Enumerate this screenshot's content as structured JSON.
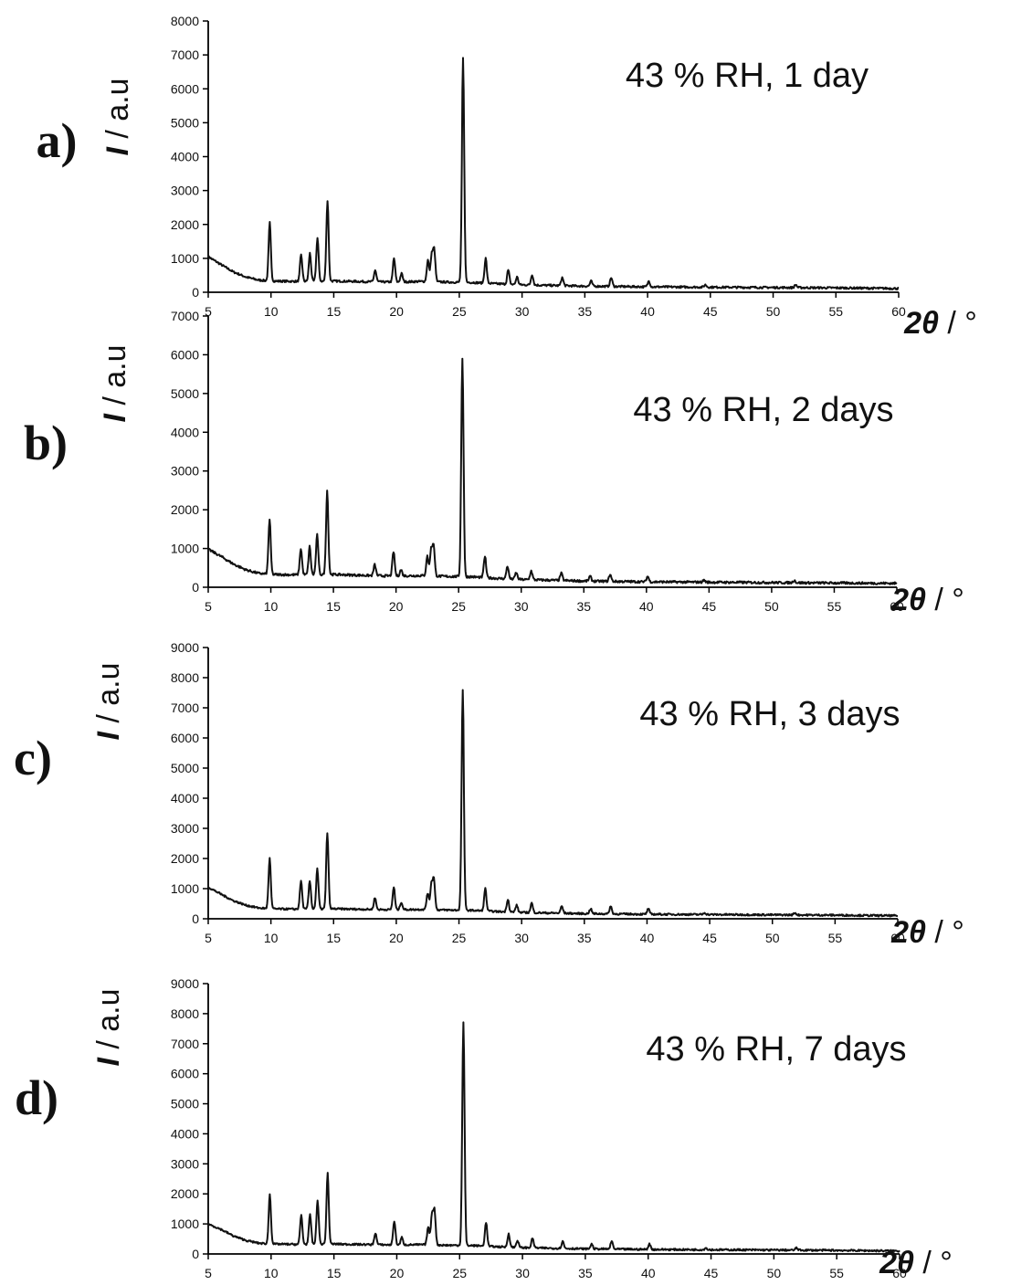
{
  "figure": {
    "colors": {
      "trace": "#111111",
      "axis": "#000000",
      "text": "#111111",
      "background": "#ffffff"
    }
  },
  "chart_data": [
    {
      "type": "line",
      "panel_label": "a)",
      "annotation": "43 % RH, 1 day",
      "ylabel_symbol": "I",
      "ylabel_unit": " / a.u",
      "xlabel_symbol": "2θ",
      "xlabel_unit": " / °",
      "xlim": [
        5,
        60
      ],
      "ylim": [
        0,
        8000
      ],
      "xticks": [
        5,
        10,
        15,
        20,
        25,
        30,
        35,
        40,
        45,
        50,
        55,
        60
      ],
      "yticks": [
        0,
        1000,
        2000,
        3000,
        4000,
        5000,
        6000,
        7000,
        8000
      ],
      "grid": false,
      "baseline": [
        [
          5,
          1050
        ],
        [
          6,
          820
        ],
        [
          7,
          600
        ],
        [
          8,
          450
        ],
        [
          9,
          360
        ],
        [
          10,
          330
        ],
        [
          12,
          320
        ],
        [
          15,
          330
        ],
        [
          18,
          310
        ],
        [
          20,
          300
        ],
        [
          22,
          320
        ],
        [
          24,
          300
        ],
        [
          26,
          290
        ],
        [
          28,
          250
        ],
        [
          30,
          220
        ],
        [
          35,
          180
        ],
        [
          40,
          160
        ],
        [
          45,
          150
        ],
        [
          50,
          140
        ],
        [
          55,
          130
        ],
        [
          60,
          110
        ]
      ],
      "peaks": [
        [
          9.9,
          2050
        ],
        [
          12.4,
          1100
        ],
        [
          13.1,
          1150
        ],
        [
          13.7,
          1600
        ],
        [
          14.5,
          2700
        ],
        [
          18.3,
          650
        ],
        [
          19.8,
          1000
        ],
        [
          20.4,
          550
        ],
        [
          22.5,
          950
        ],
        [
          22.8,
          1100
        ],
        [
          23.0,
          1250
        ],
        [
          25.3,
          6900
        ],
        [
          27.1,
          1000
        ],
        [
          28.9,
          650
        ],
        [
          29.6,
          450
        ],
        [
          30.8,
          520
        ],
        [
          33.2,
          430
        ],
        [
          35.5,
          330
        ],
        [
          37.1,
          430
        ],
        [
          40.1,
          330
        ],
        [
          44.6,
          220
        ],
        [
          51.8,
          220
        ]
      ]
    },
    {
      "type": "line",
      "panel_label": "b)",
      "annotation": "43 % RH, 2 days",
      "ylabel_symbol": "I",
      "ylabel_unit": " / a.u",
      "xlabel_symbol": "2θ",
      "xlabel_unit": " / °",
      "xlim": [
        5,
        60
      ],
      "ylim": [
        0,
        7000
      ],
      "xticks": [
        5,
        10,
        15,
        20,
        25,
        30,
        35,
        40,
        45,
        50,
        55,
        60
      ],
      "yticks": [
        0,
        1000,
        2000,
        3000,
        4000,
        5000,
        6000,
        7000
      ],
      "grid": false,
      "baseline": [
        [
          5,
          980
        ],
        [
          6,
          800
        ],
        [
          7,
          600
        ],
        [
          8,
          450
        ],
        [
          9,
          360
        ],
        [
          10,
          330
        ],
        [
          12,
          320
        ],
        [
          15,
          330
        ],
        [
          18,
          300
        ],
        [
          20,
          290
        ],
        [
          22,
          300
        ],
        [
          24,
          280
        ],
        [
          26,
          270
        ],
        [
          28,
          230
        ],
        [
          30,
          200
        ],
        [
          35,
          160
        ],
        [
          40,
          140
        ],
        [
          45,
          130
        ],
        [
          50,
          120
        ],
        [
          55,
          110
        ],
        [
          60,
          100
        ]
      ],
      "peaks": [
        [
          9.9,
          1750
        ],
        [
          12.4,
          1000
        ],
        [
          13.1,
          1050
        ],
        [
          13.7,
          1350
        ],
        [
          14.5,
          2500
        ],
        [
          18.3,
          580
        ],
        [
          19.8,
          920
        ],
        [
          20.4,
          450
        ],
        [
          22.5,
          800
        ],
        [
          22.8,
          950
        ],
        [
          23.0,
          1080
        ],
        [
          25.3,
          5900
        ],
        [
          27.1,
          800
        ],
        [
          28.9,
          550
        ],
        [
          29.6,
          380
        ],
        [
          30.8,
          420
        ],
        [
          33.2,
          360
        ],
        [
          35.5,
          280
        ],
        [
          37.1,
          330
        ],
        [
          40.1,
          280
        ],
        [
          44.6,
          180
        ],
        [
          51.8,
          180
        ]
      ]
    },
    {
      "type": "line",
      "panel_label": "c)",
      "annotation": "43 % RH, 3 days",
      "ylabel_symbol": "I",
      "ylabel_unit": " / a.u",
      "xlabel_symbol": "2θ",
      "xlabel_unit": " / °",
      "xlim": [
        5,
        60
      ],
      "ylim": [
        0,
        9000
      ],
      "xticks": [
        5,
        10,
        15,
        20,
        25,
        30,
        35,
        40,
        45,
        50,
        55,
        60
      ],
      "yticks": [
        0,
        1000,
        2000,
        3000,
        4000,
        5000,
        6000,
        7000,
        8000,
        9000
      ],
      "grid": false,
      "baseline": [
        [
          5,
          1050
        ],
        [
          6,
          820
        ],
        [
          7,
          600
        ],
        [
          8,
          450
        ],
        [
          9,
          360
        ],
        [
          10,
          330
        ],
        [
          12,
          320
        ],
        [
          15,
          330
        ],
        [
          18,
          310
        ],
        [
          20,
          300
        ],
        [
          22,
          310
        ],
        [
          24,
          290
        ],
        [
          26,
          280
        ],
        [
          28,
          240
        ],
        [
          30,
          210
        ],
        [
          35,
          170
        ],
        [
          40,
          150
        ],
        [
          45,
          140
        ],
        [
          50,
          130
        ],
        [
          55,
          120
        ],
        [
          60,
          100
        ]
      ],
      "peaks": [
        [
          9.9,
          2000
        ],
        [
          12.4,
          1250
        ],
        [
          13.1,
          1250
        ],
        [
          13.7,
          1650
        ],
        [
          14.5,
          2850
        ],
        [
          18.3,
          700
        ],
        [
          19.8,
          1050
        ],
        [
          20.4,
          550
        ],
        [
          22.5,
          850
        ],
        [
          22.8,
          1150
        ],
        [
          23.0,
          1300
        ],
        [
          25.3,
          7600
        ],
        [
          27.1,
          1000
        ],
        [
          28.9,
          650
        ],
        [
          29.6,
          450
        ],
        [
          30.8,
          520
        ],
        [
          33.2,
          420
        ],
        [
          35.5,
          330
        ],
        [
          37.1,
          420
        ],
        [
          40.1,
          330
        ],
        [
          44.6,
          200
        ],
        [
          51.8,
          200
        ]
      ]
    },
    {
      "type": "line",
      "panel_label": "d)",
      "annotation": "43 % RH, 7 days",
      "ylabel_symbol": "I",
      "ylabel_unit": " / a.u",
      "xlabel_symbol": "2θ",
      "xlabel_unit": " / °",
      "xlim": [
        5,
        60
      ],
      "ylim": [
        0,
        9000
      ],
      "xticks": [
        5,
        10,
        15,
        20,
        25,
        30,
        35,
        40,
        45,
        50,
        55,
        60
      ],
      "yticks": [
        0,
        1000,
        2000,
        3000,
        4000,
        5000,
        6000,
        7000,
        8000,
        9000
      ],
      "grid": false,
      "baseline": [
        [
          5,
          1000
        ],
        [
          6,
          820
        ],
        [
          7,
          600
        ],
        [
          8,
          450
        ],
        [
          9,
          360
        ],
        [
          10,
          330
        ],
        [
          12,
          320
        ],
        [
          15,
          330
        ],
        [
          18,
          310
        ],
        [
          20,
          300
        ],
        [
          22,
          310
        ],
        [
          24,
          290
        ],
        [
          26,
          280
        ],
        [
          28,
          240
        ],
        [
          30,
          210
        ],
        [
          35,
          170
        ],
        [
          40,
          150
        ],
        [
          45,
          140
        ],
        [
          50,
          130
        ],
        [
          55,
          120
        ],
        [
          60,
          100
        ]
      ],
      "peaks": [
        [
          9.9,
          2000
        ],
        [
          12.4,
          1300
        ],
        [
          13.1,
          1300
        ],
        [
          13.7,
          1800
        ],
        [
          14.5,
          2700
        ],
        [
          18.3,
          700
        ],
        [
          19.8,
          1100
        ],
        [
          20.4,
          550
        ],
        [
          22.5,
          900
        ],
        [
          22.8,
          1300
        ],
        [
          23.0,
          1450
        ],
        [
          25.3,
          7700
        ],
        [
          27.1,
          1050
        ],
        [
          28.9,
          680
        ],
        [
          29.6,
          450
        ],
        [
          30.8,
          520
        ],
        [
          33.2,
          420
        ],
        [
          35.5,
          330
        ],
        [
          37.1,
          420
        ],
        [
          40.1,
          330
        ],
        [
          44.6,
          200
        ],
        [
          51.8,
          200
        ]
      ]
    }
  ]
}
